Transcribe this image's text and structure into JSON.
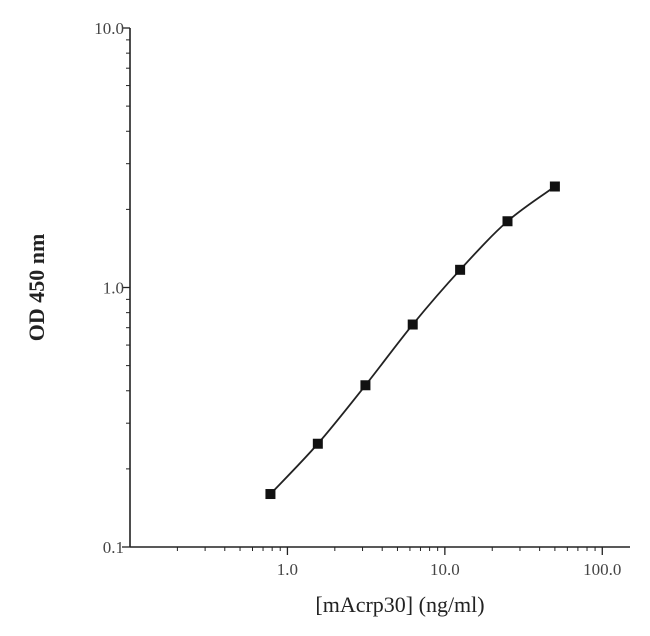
{
  "chart_data": {
    "type": "scatter",
    "title": "",
    "xlabel": "[mAcrp30] (ng/ml)",
    "ylabel": "OD 450 nm",
    "x_scale": "log",
    "y_scale": "log",
    "xlim": [
      0.1,
      150
    ],
    "ylim": [
      0.1,
      10
    ],
    "x_ticks": [
      {
        "value": 1,
        "label": "1.0"
      },
      {
        "value": 10,
        "label": "10.0"
      },
      {
        "value": 100,
        "label": "100.0"
      }
    ],
    "y_ticks": [
      {
        "value": 0.1,
        "label": "0.1"
      },
      {
        "value": 1,
        "label": "1.0"
      },
      {
        "value": 10,
        "label": "10.0"
      }
    ],
    "grid": false,
    "legend": "none",
    "series": [
      {
        "x": [
          0.78,
          1.56,
          3.13,
          6.25,
          12.5,
          25,
          50
        ],
        "y": [
          0.16,
          0.25,
          0.42,
          0.72,
          1.17,
          1.8,
          2.45
        ]
      }
    ]
  }
}
